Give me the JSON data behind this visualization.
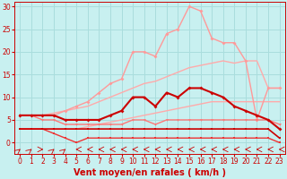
{
  "title": "",
  "xlabel": "Vent moyen/en rafales ( km/h )",
  "ylabel": "",
  "background_color": "#c8f0f0",
  "grid_color": "#aadddd",
  "x_ticks": [
    0,
    1,
    2,
    3,
    4,
    5,
    6,
    7,
    8,
    9,
    10,
    11,
    12,
    13,
    14,
    15,
    16,
    17,
    18,
    19,
    20,
    21,
    22,
    23
  ],
  "y_ticks": [
    0,
    5,
    10,
    15,
    20,
    25,
    30
  ],
  "ylim": [
    -2.5,
    31
  ],
  "xlim": [
    -0.5,
    23.5
  ],
  "lines": [
    {
      "x": [
        0,
        1,
        2,
        3,
        4,
        5,
        6,
        7,
        8,
        9,
        10,
        11,
        12,
        13,
        14,
        15,
        16,
        17,
        18,
        19,
        20,
        21,
        22,
        23
      ],
      "y": [
        3,
        3,
        3,
        3,
        3,
        3,
        3,
        3,
        3,
        3,
        3,
        3,
        3,
        3,
        3,
        3,
        3,
        3,
        3,
        3,
        3,
        3,
        3,
        1
      ],
      "color": "#cc0000",
      "lw": 1.2,
      "marker": "s",
      "ms": 2.0,
      "zorder": 6
    },
    {
      "x": [
        0,
        1,
        2,
        3,
        4,
        5,
        6,
        7,
        8,
        9,
        10,
        11,
        12,
        13,
        14,
        15,
        16,
        17,
        18,
        19,
        20,
        21,
        22,
        23
      ],
      "y": [
        3,
        3,
        3,
        2,
        1,
        0,
        1,
        1,
        1,
        1,
        1,
        1,
        1,
        1,
        1,
        1,
        1,
        1,
        1,
        1,
        1,
        1,
        1,
        0
      ],
      "color": "#ee3333",
      "lw": 1.0,
      "marker": "s",
      "ms": 2.0,
      "zorder": 5
    },
    {
      "x": [
        0,
        1,
        2,
        3,
        4,
        5,
        6,
        7,
        8,
        9,
        10,
        11,
        12,
        13,
        14,
        15,
        16,
        17,
        18,
        19,
        20,
        21,
        22,
        23
      ],
      "y": [
        6,
        6,
        5,
        5,
        4,
        4,
        4,
        4,
        4,
        4,
        5,
        5,
        4,
        5,
        5,
        5,
        5,
        5,
        5,
        5,
        5,
        5,
        5,
        4
      ],
      "color": "#ff7777",
      "lw": 1.0,
      "marker": "v",
      "ms": 2.0,
      "zorder": 5
    },
    {
      "x": [
        0,
        1,
        2,
        3,
        4,
        5,
        6,
        7,
        8,
        9,
        10,
        11,
        12,
        13,
        14,
        15,
        16,
        17,
        18,
        19,
        20,
        21,
        22,
        23
      ],
      "y": [
        6,
        6,
        6,
        6,
        5,
        5,
        5,
        5,
        6,
        7,
        10,
        10,
        8,
        11,
        10,
        12,
        12,
        11,
        10,
        8,
        7,
        6,
        5,
        3
      ],
      "color": "#cc0000",
      "lw": 1.5,
      "marker": "D",
      "ms": 2.0,
      "zorder": 7
    },
    {
      "x": [
        0,
        1,
        2,
        3,
        4,
        5,
        6,
        7,
        8,
        9,
        10,
        11,
        12,
        13,
        14,
        15,
        16,
        17,
        18,
        19,
        20,
        21,
        22,
        23
      ],
      "y": [
        3,
        3,
        3,
        3,
        3,
        3,
        3.5,
        4,
        4.5,
        5,
        5.5,
        6,
        6.5,
        7,
        7.5,
        8,
        8.5,
        9,
        9,
        9,
        9,
        9,
        9,
        9
      ],
      "color": "#ffaaaa",
      "lw": 1.0,
      "marker": null,
      "ms": 0,
      "zorder": 2
    },
    {
      "x": [
        0,
        1,
        2,
        3,
        4,
        5,
        6,
        7,
        8,
        9,
        10,
        11,
        12,
        13,
        14,
        15,
        16,
        17,
        18,
        19,
        20,
        21,
        22,
        23
      ],
      "y": [
        6,
        6,
        6,
        6.5,
        7,
        7.5,
        8,
        9,
        10,
        11,
        12,
        13,
        13.5,
        14.5,
        15.5,
        16.5,
        17,
        17.5,
        18,
        17.5,
        18,
        18,
        12,
        12
      ],
      "color": "#ffaaaa",
      "lw": 1.0,
      "marker": null,
      "ms": 0,
      "zorder": 2
    },
    {
      "x": [
        0,
        1,
        2,
        3,
        4,
        5,
        6,
        7,
        8,
        9,
        10,
        11,
        12,
        13,
        14,
        15,
        16,
        17,
        18,
        19,
        20,
        21,
        22,
        23
      ],
      "y": [
        6,
        6,
        6,
        6,
        7,
        8,
        9,
        11,
        13,
        14,
        20,
        20,
        19,
        24,
        25,
        30,
        29,
        23,
        22,
        22,
        18,
        5,
        12,
        12
      ],
      "color": "#ff9999",
      "lw": 1.0,
      "marker": "D",
      "ms": 2.0,
      "zorder": 4
    }
  ],
  "xlabel_color": "#cc0000",
  "tick_color": "#cc0000",
  "xlabel_fontsize": 7,
  "tick_fontsize": 5.5
}
